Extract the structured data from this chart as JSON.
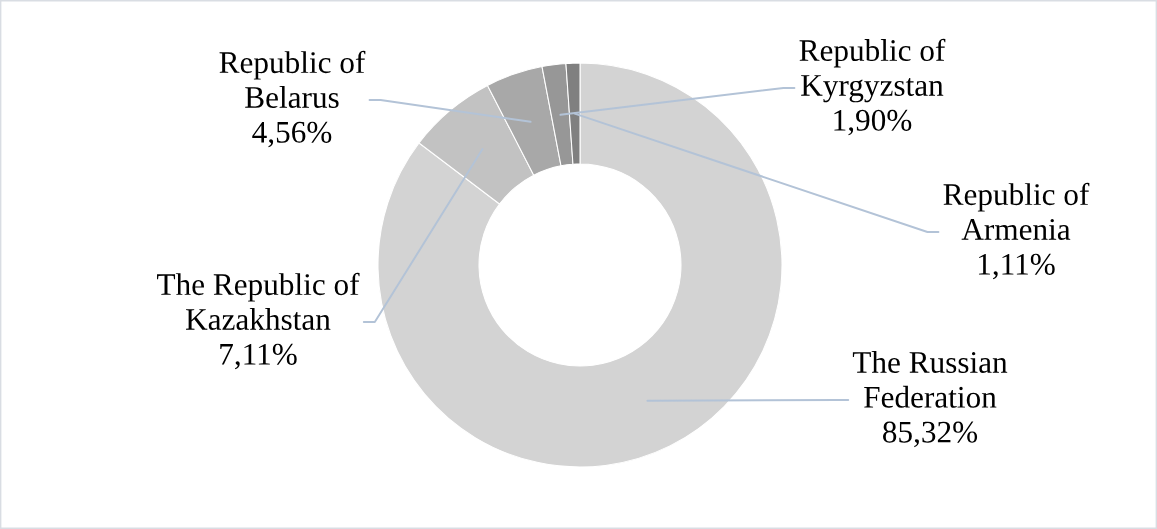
{
  "chart_data": {
    "type": "donut",
    "categories": [
      "The Russian Federation",
      "The Republic of Kazakhstan",
      "Republic of Belarus",
      "Republic of Kyrgyzstan",
      "Republic of Armenia"
    ],
    "values": [
      85.32,
      7.11,
      4.56,
      1.9,
      1.11
    ],
    "colors": [
      "#d3d3d3",
      "#c2c2c2",
      "#a8a8a8",
      "#979797",
      "#808080"
    ],
    "value_labels": [
      "85,32%",
      "7,11%",
      "4,56%",
      "1,90%",
      "1,11%"
    ]
  }
}
